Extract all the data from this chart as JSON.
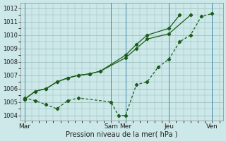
{
  "bg_color": "#cce8e8",
  "grid_color": "#99bbbb",
  "line_color": "#1a5c1a",
  "marker_color": "#1a5c1a",
  "ylabel_ticks": [
    1004,
    1005,
    1006,
    1007,
    1008,
    1009,
    1010,
    1011,
    1012
  ],
  "ylim": [
    1003.6,
    1012.4
  ],
  "xtick_labels": [
    "Mar",
    "Sam",
    "Mer",
    "Jeu",
    "Ven"
  ],
  "xtick_positions": [
    0,
    48,
    56,
    80,
    104
  ],
  "xlim": [
    -2,
    110
  ],
  "xlabel": "Pression niveau de la mer( hPa )",
  "series1_x": [
    0,
    6,
    12,
    18,
    24,
    30,
    36,
    42,
    56,
    62,
    68,
    80,
    86
  ],
  "series1_y": [
    1005.2,
    1005.8,
    1006.0,
    1006.5,
    1006.8,
    1007.0,
    1007.1,
    1007.3,
    1008.5,
    1009.3,
    1010.0,
    1010.5,
    1011.5
  ],
  "series2_x": [
    0,
    6,
    12,
    18,
    24,
    30,
    36,
    42,
    56,
    62,
    68,
    80,
    92
  ],
  "series2_y": [
    1005.2,
    1005.8,
    1006.0,
    1006.5,
    1006.8,
    1007.0,
    1007.1,
    1007.3,
    1008.3,
    1009.0,
    1009.7,
    1010.1,
    1011.5
  ],
  "series3_x": [
    0,
    6,
    12,
    18,
    24,
    30,
    48,
    52,
    56,
    62,
    68,
    74,
    80,
    86,
    92,
    98,
    104
  ],
  "series3_y": [
    1005.3,
    1005.1,
    1004.8,
    1004.5,
    1005.1,
    1005.3,
    1005.0,
    1004.0,
    1004.0,
    1006.3,
    1006.5,
    1007.6,
    1008.2,
    1009.5,
    1010.0,
    1011.4,
    1011.6
  ],
  "vline_positions": [
    0,
    48,
    56,
    80,
    104
  ],
  "vline_color": "#4488aa"
}
